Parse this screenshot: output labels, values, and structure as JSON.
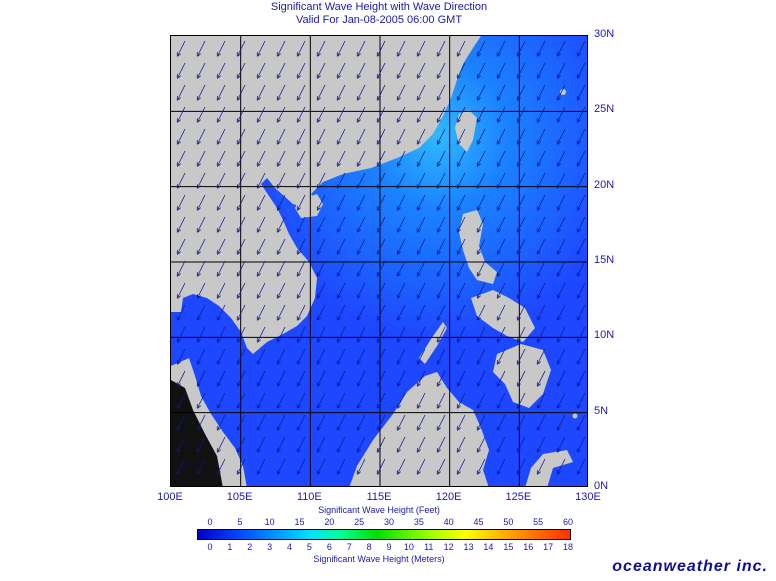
{
  "title": "Significant Wave Height with Wave Direction",
  "subtitle": "Valid For Jan-08-2005 06:00 GMT",
  "axes": {
    "lon_labels": [
      "100E",
      "105E",
      "110E",
      "115E",
      "120E",
      "125E",
      "130E"
    ],
    "lat_labels": [
      "30N",
      "25N",
      "20N",
      "15N",
      "10N",
      "5N",
      "0N"
    ]
  },
  "legend": {
    "feet_label": "Significant Wave Height (Feet)",
    "meters_label": "Significant Wave Height (Meters)",
    "feet_ticks": [
      "0",
      "5",
      "10",
      "15",
      "20",
      "25",
      "30",
      "35",
      "40",
      "45",
      "50",
      "55",
      "60"
    ],
    "meter_ticks": [
      "0",
      "1",
      "2",
      "3",
      "4",
      "5",
      "6",
      "7",
      "8",
      "9",
      "10",
      "11",
      "12",
      "13",
      "14",
      "15",
      "16",
      "17",
      "18"
    ]
  },
  "colors": {
    "land": "#c8c8c8",
    "sea_low": "#1f3cff",
    "sea_mid": "#1a7dff",
    "sea_high": "#33c8ff",
    "arrow": "#0b1a8c",
    "grid": "#000000"
  },
  "brand": "oceanweather inc."
}
